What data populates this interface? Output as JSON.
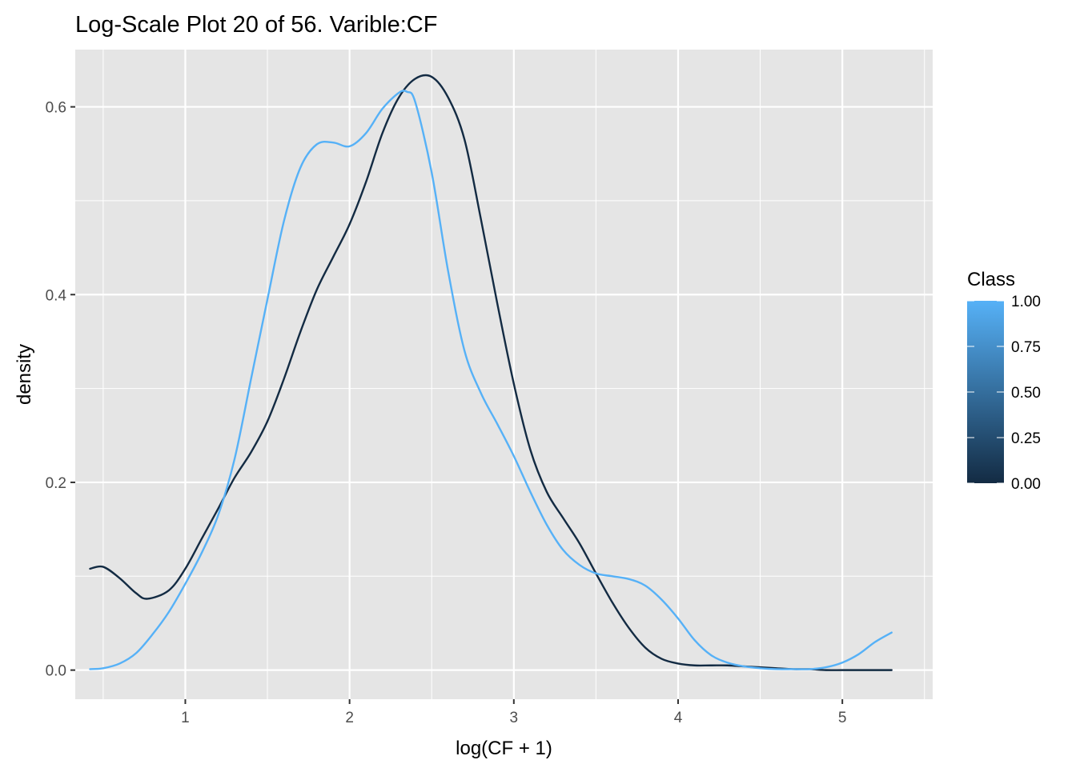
{
  "chart_data": {
    "type": "line",
    "title": "Log-Scale Plot 20 of 56. Varible:CF",
    "xlabel": "log(CF + 1)",
    "ylabel": "density",
    "xlim": [
      0.33,
      5.55
    ],
    "ylim": [
      -0.031,
      0.661
    ],
    "x_ticks": [
      1,
      2,
      3,
      4,
      5
    ],
    "x_tick_labels": [
      "1",
      "2",
      "3",
      "4",
      "5"
    ],
    "y_ticks": [
      0.0,
      0.2,
      0.4,
      0.6
    ],
    "y_tick_labels": [
      "0.0",
      "0.2",
      "0.4",
      "0.6"
    ],
    "grid": true,
    "panel_background": "#e5e5e5",
    "legend": {
      "title": "Class",
      "placement": "right",
      "type": "colorbar",
      "low_color": "#132b43",
      "high_color": "#56b1f7",
      "breaks": [
        0.0,
        0.25,
        0.5,
        0.75,
        1.0
      ],
      "labels": [
        "0.00",
        "0.25",
        "0.50",
        "0.75",
        "1.00"
      ]
    },
    "series": [
      {
        "class_value": 0,
        "color": "#132b43",
        "x": [
          0.42,
          0.5,
          0.6,
          0.7,
          0.77,
          0.9,
          1.0,
          1.1,
          1.2,
          1.3,
          1.4,
          1.5,
          1.6,
          1.7,
          1.8,
          1.9,
          2.0,
          2.1,
          2.2,
          2.3,
          2.4,
          2.5,
          2.6,
          2.7,
          2.8,
          2.9,
          3.0,
          3.1,
          3.2,
          3.3,
          3.4,
          3.5,
          3.6,
          3.7,
          3.8,
          3.9,
          4.0,
          4.1,
          4.2,
          4.3,
          4.4,
          4.5,
          4.6,
          4.7,
          4.8,
          4.9,
          5.0,
          5.1,
          5.2,
          5.3
        ],
        "y": [
          0.108,
          0.11,
          0.098,
          0.082,
          0.076,
          0.085,
          0.108,
          0.14,
          0.172,
          0.205,
          0.232,
          0.265,
          0.31,
          0.36,
          0.405,
          0.44,
          0.475,
          0.52,
          0.572,
          0.61,
          0.63,
          0.632,
          0.61,
          0.565,
          0.48,
          0.39,
          0.305,
          0.235,
          0.19,
          0.162,
          0.135,
          0.103,
          0.072,
          0.045,
          0.024,
          0.012,
          0.007,
          0.005,
          0.005,
          0.005,
          0.004,
          0.003,
          0.002,
          0.001,
          0.001,
          0.0,
          0.0,
          0.0,
          0.0,
          0.0
        ]
      },
      {
        "class_value": 1,
        "color": "#56b1f7",
        "x": [
          0.42,
          0.5,
          0.6,
          0.7,
          0.8,
          0.9,
          1.0,
          1.1,
          1.2,
          1.3,
          1.4,
          1.5,
          1.6,
          1.7,
          1.8,
          1.9,
          2.0,
          2.1,
          2.2,
          2.3,
          2.35,
          2.4,
          2.5,
          2.6,
          2.7,
          2.8,
          2.9,
          3.0,
          3.1,
          3.2,
          3.3,
          3.4,
          3.5,
          3.6,
          3.7,
          3.8,
          3.9,
          4.0,
          4.1,
          4.2,
          4.3,
          4.4,
          4.5,
          4.6,
          4.7,
          4.8,
          4.9,
          5.0,
          5.1,
          5.2,
          5.3
        ],
        "y": [
          0.001,
          0.002,
          0.007,
          0.018,
          0.038,
          0.062,
          0.092,
          0.125,
          0.165,
          0.225,
          0.31,
          0.395,
          0.478,
          0.535,
          0.56,
          0.562,
          0.558,
          0.572,
          0.598,
          0.615,
          0.616,
          0.605,
          0.53,
          0.425,
          0.34,
          0.295,
          0.262,
          0.228,
          0.19,
          0.155,
          0.128,
          0.112,
          0.103,
          0.1,
          0.097,
          0.09,
          0.075,
          0.055,
          0.032,
          0.016,
          0.008,
          0.004,
          0.002,
          0.001,
          0.001,
          0.001,
          0.003,
          0.008,
          0.017,
          0.03,
          0.04
        ]
      }
    ]
  }
}
